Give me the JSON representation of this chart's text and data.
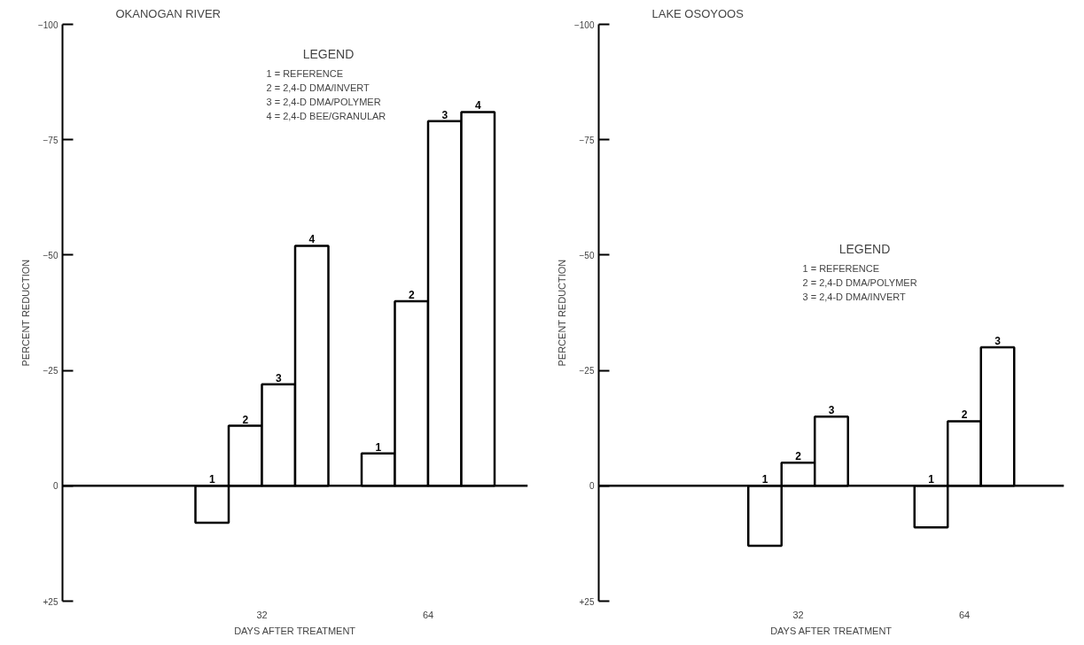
{
  "chart_data": [
    {
      "type": "bar",
      "title": "OKANOGAN RIVER",
      "xlabel": "DAYS AFTER TREATMENT",
      "ylabel": "PERCENT REDUCTION",
      "legend_title": "LEGEND",
      "categories": [
        "32",
        "64"
      ],
      "series": [
        {
          "name": "1",
          "color": "#ffffff",
          "values": [
            8,
            -7
          ]
        },
        {
          "name": "2",
          "color": "#ffffff",
          "values": [
            -13,
            -40
          ]
        },
        {
          "name": "3",
          "color": "#ffffff",
          "values": [
            -22,
            -79
          ]
        },
        {
          "name": "4",
          "color": "#ffffff",
          "values": [
            -52,
            -81
          ]
        }
      ],
      "ylim": [
        25,
        -100
      ],
      "yticks": [
        -100,
        -75,
        -50,
        -25,
        0,
        {
          "value": 25,
          "label": "+25"
        }
      ],
      "ref_lines": [
        {
          "axis": "y",
          "value": 0,
          "color": "#000000"
        }
      ],
      "annotations": [
        "1 = REFERENCE",
        "2 = 2,4-D DMA/INVERT",
        "3 = 2,4-D DMA/POLYMER",
        "4 = 2,4-D BEE/GRANULAR"
      ],
      "grid": false
    },
    {
      "type": "bar",
      "title": "LAKE OSOYOOS",
      "xlabel": "DAYS AFTER TREATMENT",
      "ylabel": "PERCENT REDUCTION",
      "legend_title": "LEGEND",
      "categories": [
        "32",
        "64"
      ],
      "series": [
        {
          "name": "1",
          "color": "#ffffff",
          "values": [
            13,
            9
          ]
        },
        {
          "name": "2",
          "color": "#ffffff",
          "values": [
            -5,
            -14
          ]
        },
        {
          "name": "3",
          "color": "#ffffff",
          "values": [
            -15,
            -30
          ]
        }
      ],
      "ylim": [
        25,
        -100
      ],
      "yticks": [
        -100,
        -75,
        -50,
        -25,
        0,
        {
          "value": 25,
          "label": "+25"
        }
      ],
      "ref_lines": [
        {
          "axis": "y",
          "value": 0,
          "color": "#000000"
        }
      ],
      "annotations": [
        "1 = REFERENCE",
        "2 = 2,4-D DMA/POLYMER",
        "3 = 2,4-D DMA/INVERT"
      ],
      "grid": false
    }
  ]
}
